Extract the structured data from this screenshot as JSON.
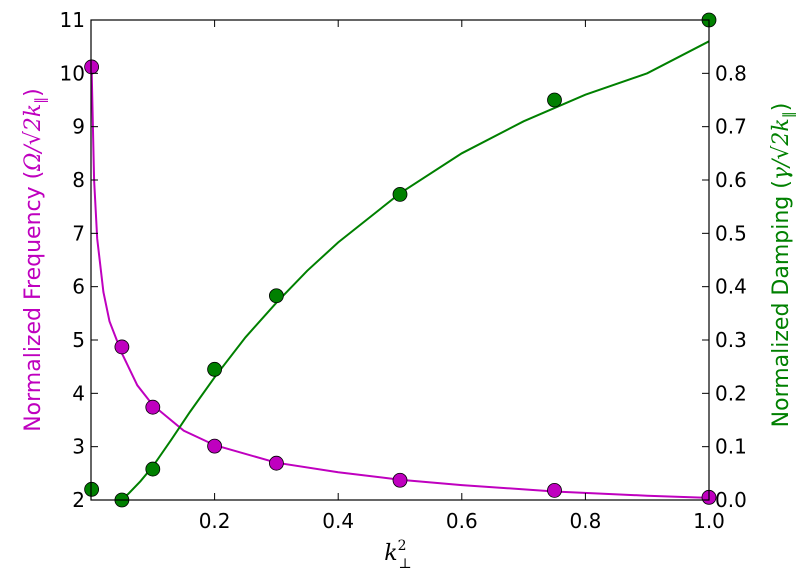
{
  "chart_data": {
    "type": "scatter",
    "title": "",
    "xlabel": "k",
    "xlabel_sup": "2",
    "xlabel_sub": "⊥",
    "ylabel_left": {
      "prefix": "Normalized Frequency (",
      "symbol": "Ω/√2k",
      "sub": "∥",
      "suffix": ")",
      "color": "#bf00bf"
    },
    "ylabel_right": {
      "prefix": "Normalized Damping (",
      "symbol": "γ/√2k",
      "sub": "∥",
      "suffix": ")",
      "color": "#008000"
    },
    "xlim": [
      0.0,
      1.0
    ],
    "ylim_left": [
      2,
      11
    ],
    "ylim_right": [
      0.0,
      0.9
    ],
    "xticks": [
      0.2,
      0.4,
      0.6,
      0.8,
      1.0
    ],
    "xtick_labels": [
      "0.2",
      "0.4",
      "0.6",
      "0.8",
      "1.0"
    ],
    "yticks_left": [
      2,
      3,
      4,
      5,
      6,
      7,
      8,
      9,
      10,
      11
    ],
    "ytick_labels_left": [
      "2",
      "3",
      "4",
      "5",
      "6",
      "7",
      "8",
      "9",
      "10",
      "11"
    ],
    "yticks_right": [
      0.0,
      0.1,
      0.2,
      0.3,
      0.4,
      0.5,
      0.6,
      0.7,
      0.8
    ],
    "ytick_labels_right": [
      "0.0",
      "0.1",
      "0.2",
      "0.3",
      "0.4",
      "0.5",
      "0.6",
      "0.7",
      "0.8"
    ],
    "grid": false,
    "series": [
      {
        "axis": "left",
        "color": "#bf00bf",
        "points": {
          "x": [
            0.001,
            0.05,
            0.1,
            0.2,
            0.3,
            0.5,
            0.75,
            1.0
          ],
          "y": [
            10.12,
            4.87,
            3.74,
            3.01,
            2.69,
            2.37,
            2.18,
            2.05
          ]
        },
        "fit_curve": {
          "x": [
            0.001,
            0.005,
            0.01,
            0.02,
            0.03,
            0.05,
            0.075,
            0.1,
            0.15,
            0.2,
            0.3,
            0.4,
            0.5,
            0.6,
            0.75,
            0.9,
            1.0
          ],
          "y": [
            10.1,
            8.0,
            6.9,
            5.9,
            5.35,
            4.75,
            4.15,
            3.78,
            3.3,
            3.03,
            2.7,
            2.52,
            2.38,
            2.28,
            2.16,
            2.08,
            2.04
          ]
        }
      },
      {
        "axis": "right",
        "color": "#008000",
        "points": {
          "x": [
            0.001,
            0.05,
            0.1,
            0.2,
            0.3,
            0.5,
            0.75,
            1.0
          ],
          "y": [
            0.02,
            0.0,
            0.058,
            0.245,
            0.383,
            0.573,
            0.75,
            0.9
          ]
        },
        "fit_curve": {
          "x": [
            0.04,
            0.05,
            0.06,
            0.08,
            0.1,
            0.13,
            0.16,
            0.2,
            0.25,
            0.3,
            0.35,
            0.4,
            0.5,
            0.6,
            0.7,
            0.8,
            0.9,
            1.0
          ],
          "y": [
            0.0,
            0.003,
            0.011,
            0.035,
            0.063,
            0.113,
            0.165,
            0.23,
            0.305,
            0.37,
            0.43,
            0.483,
            0.575,
            0.65,
            0.71,
            0.76,
            0.8,
            0.86
          ]
        }
      }
    ]
  }
}
